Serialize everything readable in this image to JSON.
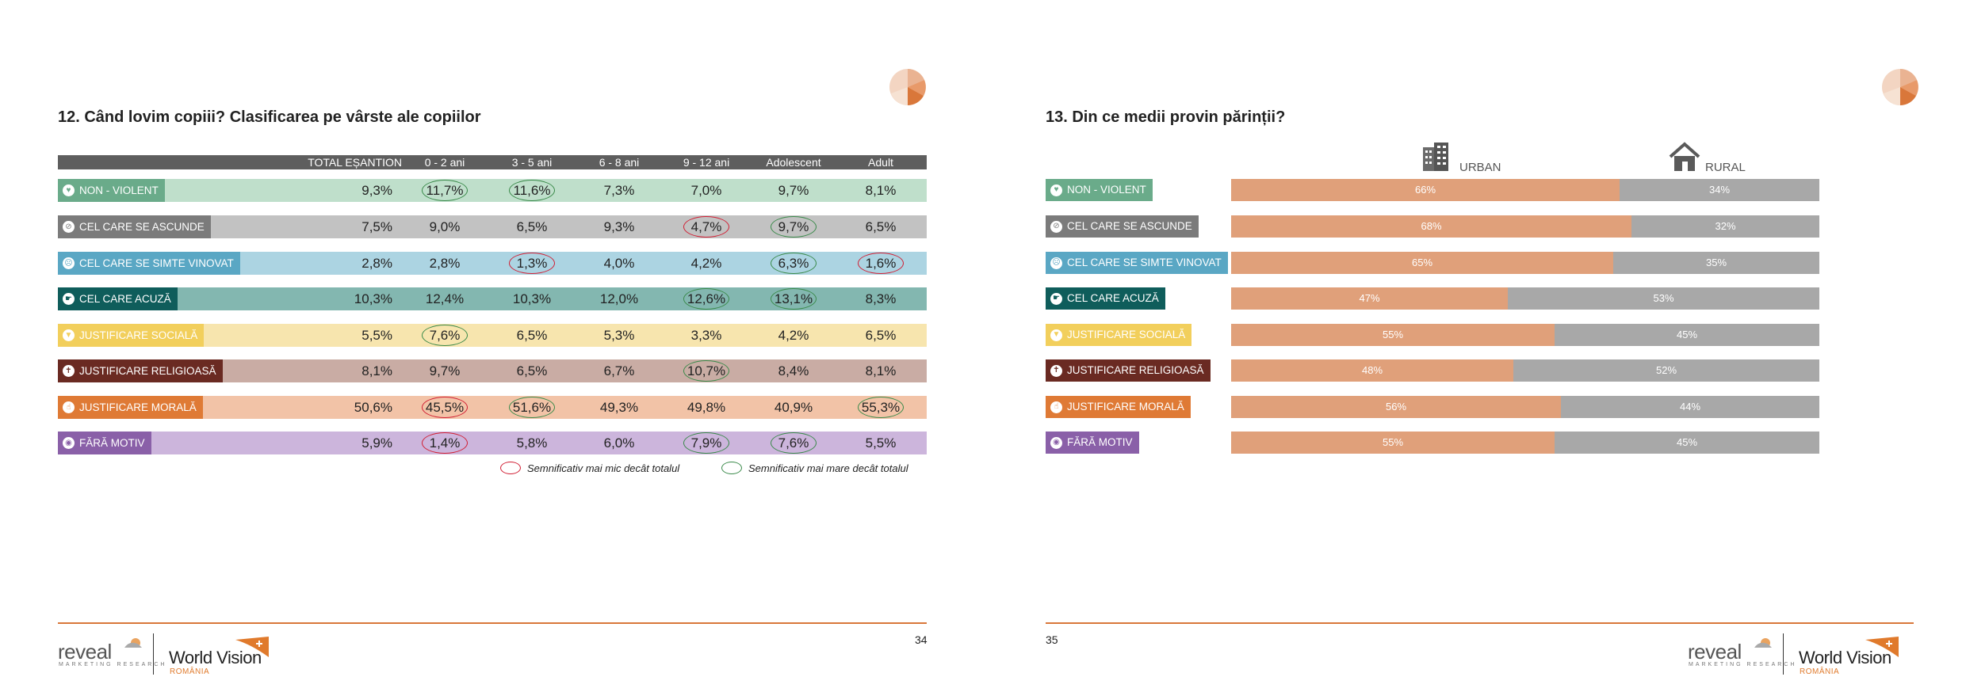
{
  "left_page": {
    "title": "12.  Când lovim copiii? Clasificarea pe vârste ale copiilor",
    "page_number": "34",
    "columns": [
      "TOTAL EȘANTION",
      "0 - 2 ani",
      "3 - 5 ani",
      "6 - 8 ani",
      "9 - 12 ani",
      "Adolescent",
      "Adult"
    ],
    "rows": [
      {
        "label": "NON - VIOLENT",
        "icon": "heart-icon",
        "color": "#6aab8a",
        "bg": "#bfdfcb",
        "values": [
          "9,3%",
          "11,7%",
          "11,6%",
          "7,3%",
          "7,0%",
          "9,7%",
          "8,1%"
        ]
      },
      {
        "label": "CEL CARE SE ASCUNDE",
        "icon": "hidden-icon",
        "color": "#7b7b7b",
        "bg": "#c2c2c2",
        "values": [
          "7,5%",
          "9,0%",
          "6,5%",
          "9,3%",
          "4,7%",
          "9,7%",
          "6,5%"
        ]
      },
      {
        "label": "CEL CARE SE SIMTE VINOVAT",
        "icon": "sad-face-icon",
        "color": "#5aa7c4",
        "bg": "#acd4e2",
        "values": [
          "2,8%",
          "2,8%",
          "1,3%",
          "4,0%",
          "4,2%",
          "6,3%",
          "1,6%"
        ]
      },
      {
        "label": "CEL CARE ACUZĂ",
        "icon": "pointing-hand-icon",
        "color": "#0f5d5b",
        "bg": "#83b7b0",
        "values": [
          "10,3%",
          "12,4%",
          "10,3%",
          "12,0%",
          "12,6%",
          "13,1%",
          "8,3%"
        ]
      },
      {
        "label": "JUSTIFICARE SOCIALĂ",
        "icon": "filter-icon",
        "color": "#f2cf5c",
        "bg": "#f7e5ae",
        "values": [
          "5,5%",
          "7,6%",
          "6,5%",
          "5,3%",
          "3,3%",
          "4,2%",
          "6,5%"
        ]
      },
      {
        "label": "JUSTIFICARE RELIGIOASĂ",
        "icon": "cross-icon",
        "color": "#6a2a22",
        "bg": "#c9aca4",
        "values": [
          "8,1%",
          "9,7%",
          "6,5%",
          "6,7%",
          "10,7%",
          "8,4%",
          "8,1%"
        ]
      },
      {
        "label": "JUSTIFICARE MORALĂ",
        "icon": "thumbs-up-icon",
        "color": "#df7a35",
        "bg": "#f2c3a7",
        "values": [
          "50,6%",
          "45,5%",
          "51,6%",
          "49,3%",
          "49,8%",
          "40,9%",
          "55,3%"
        ]
      },
      {
        "label": "FĂRĂ MOTIV",
        "icon": "dot-circle-icon",
        "color": "#8a60a8",
        "bg": "#ccb5dc",
        "values": [
          "5,9%",
          "1,4%",
          "5,8%",
          "6,0%",
          "7,9%",
          "7,6%",
          "5,5%"
        ]
      }
    ],
    "legend": {
      "lower": "Semnificativ mai mic decât totalul",
      "higher": "Semnificativ mai mare decât totalul",
      "lower_color": "#d11f34",
      "higher_color": "#3a8a4a"
    }
  },
  "right_page": {
    "title": "13.  Din ce medii provin părinții?",
    "page_number": "35",
    "chart_data": {
      "type": "bar",
      "stacked": true,
      "orientation": "horizontal",
      "categories": [
        "NON - VIOLENT",
        "CEL CARE SE ASCUNDE",
        "CEL CARE SE SIMTE VINOVAT",
        "CEL CARE ACUZĂ",
        "JUSTIFICARE SOCIALĂ",
        "JUSTIFICARE RELIGIOASĂ",
        "JUSTIFICARE MORALĂ",
        "FĂRĂ MOTIV"
      ],
      "series": [
        {
          "name": "URBAN",
          "color": "#e0a07a",
          "values": [
            66,
            68,
            65,
            47,
            55,
            48,
            56,
            55
          ],
          "labels": [
            "66%",
            "68%",
            "65%",
            "47%",
            "55%",
            "48%",
            "56%",
            "55%"
          ]
        },
        {
          "name": "RURAL",
          "color": "#a8a8a8",
          "values": [
            34,
            32,
            35,
            53,
            45,
            52,
            44,
            45
          ],
          "labels": [
            "34%",
            "32%",
            "35%",
            "53%",
            "45%",
            "52%",
            "44%",
            "45%"
          ]
        }
      ]
    }
  },
  "footer": {
    "reveal_logo": "reveal",
    "reveal_sub": "MARKETING RESEARCH",
    "wv_logo": "World Vision",
    "wv_sub": "ROMÂNIA",
    "accent": "#d9773a"
  }
}
